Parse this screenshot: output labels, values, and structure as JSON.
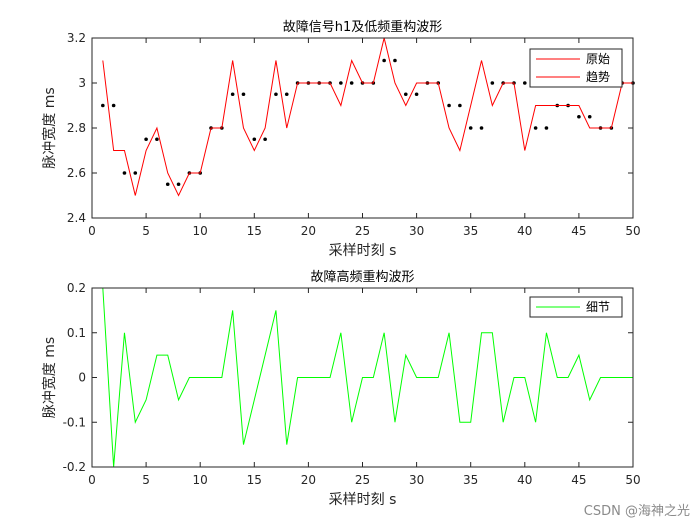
{
  "chart_data": [
    {
      "type": "line",
      "title": "故障信号h1及低频重构波形",
      "xlabel": "采样时刻 s",
      "ylabel": "脉冲宽度 ms",
      "xlim": [
        0,
        50
      ],
      "ylim": [
        2.4,
        3.2
      ],
      "xticks": [
        0,
        5,
        10,
        15,
        20,
        25,
        30,
        35,
        40,
        45,
        50
      ],
      "xtick_labels": [
        "0",
        "5",
        "10",
        "15",
        "20",
        "25",
        "30",
        "35",
        "40",
        "45",
        "50"
      ],
      "yticks": [
        2.4,
        2.6,
        2.8,
        3.0,
        3.2
      ],
      "ytick_labels": [
        "2.4",
        "2.6",
        "2.8",
        "3",
        "3.2"
      ],
      "legend_position": "top-right",
      "x": [
        1,
        2,
        3,
        4,
        5,
        6,
        7,
        8,
        9,
        10,
        11,
        12,
        13,
        14,
        15,
        16,
        17,
        18,
        19,
        20,
        21,
        22,
        23,
        24,
        25,
        26,
        27,
        28,
        29,
        30,
        31,
        32,
        33,
        34,
        35,
        36,
        37,
        38,
        39,
        40,
        41,
        42,
        43,
        44,
        45,
        46,
        47,
        48,
        49,
        50
      ],
      "series": [
        {
          "name": "原始",
          "color": "#000000",
          "style": "dots",
          "values": [
            2.9,
            2.9,
            2.6,
            2.6,
            2.75,
            2.75,
            2.55,
            2.55,
            2.6,
            2.6,
            2.8,
            2.8,
            2.95,
            2.95,
            2.75,
            2.75,
            2.95,
            2.95,
            3.0,
            3.0,
            3.0,
            3.0,
            3.0,
            3.0,
            3.0,
            3.0,
            3.1,
            3.1,
            2.95,
            2.95,
            3.0,
            3.0,
            2.9,
            2.9,
            2.8,
            2.8,
            3.0,
            3.0,
            3.0,
            3.0,
            2.8,
            2.8,
            2.9,
            2.9,
            2.85,
            2.85,
            2.8,
            2.8,
            3.0,
            3.0
          ]
        },
        {
          "name": "趋势",
          "color": "#ff0000",
          "style": "line",
          "values": [
            3.1,
            2.7,
            2.7,
            2.5,
            2.7,
            2.8,
            2.6,
            2.5,
            2.6,
            2.6,
            2.8,
            2.8,
            3.1,
            2.8,
            2.7,
            2.8,
            3.1,
            2.8,
            3.0,
            3.0,
            3.0,
            3.0,
            2.9,
            3.1,
            3.0,
            3.0,
            3.2,
            3.0,
            2.9,
            3.0,
            3.0,
            3.0,
            2.8,
            2.7,
            2.9,
            3.1,
            2.9,
            3.0,
            3.0,
            2.7,
            2.9,
            2.9,
            2.9,
            2.9,
            2.9,
            2.8,
            2.8,
            2.8,
            3.0,
            3.0
          ]
        }
      ]
    },
    {
      "type": "line",
      "title": "故障高频重构波形",
      "xlabel": "采样时刻 s",
      "ylabel": "脉冲宽度 ms",
      "xlim": [
        0,
        50
      ],
      "ylim": [
        -0.2,
        0.2
      ],
      "xticks": [
        0,
        5,
        10,
        15,
        20,
        25,
        30,
        35,
        40,
        45,
        50
      ],
      "xtick_labels": [
        "0",
        "5",
        "10",
        "15",
        "20",
        "25",
        "30",
        "35",
        "40",
        "45",
        "50"
      ],
      "yticks": [
        -0.2,
        -0.1,
        0,
        0.1,
        0.2
      ],
      "ytick_labels": [
        "-0.2",
        "-0.1",
        "0",
        "0.1",
        "0.2"
      ],
      "legend_position": "top-right",
      "x": [
        1,
        2,
        3,
        4,
        5,
        6,
        7,
        8,
        9,
        10,
        11,
        12,
        13,
        14,
        15,
        16,
        17,
        18,
        19,
        20,
        21,
        22,
        23,
        24,
        25,
        26,
        27,
        28,
        29,
        30,
        31,
        32,
        33,
        34,
        35,
        36,
        37,
        38,
        39,
        40,
        41,
        42,
        43,
        44,
        45,
        46,
        47,
        48,
        49,
        50
      ],
      "series": [
        {
          "name": "细节",
          "color": "#00ff00",
          "style": "line",
          "values": [
            0.2,
            -0.2,
            0.1,
            -0.1,
            -0.05,
            0.05,
            0.05,
            -0.05,
            0,
            0,
            0,
            0,
            0.15,
            -0.15,
            -0.05,
            0.05,
            0.15,
            -0.15,
            0,
            0,
            0,
            0,
            0.1,
            -0.1,
            0,
            0,
            0.1,
            -0.1,
            0.05,
            0,
            0,
            0,
            0.1,
            -0.1,
            -0.1,
            0.1,
            0.1,
            -0.1,
            0,
            0,
            -0.1,
            0.1,
            0,
            0,
            0.05,
            -0.05,
            0,
            0,
            0,
            0
          ]
        }
      ]
    }
  ],
  "watermark": "CSDN @海神之光"
}
